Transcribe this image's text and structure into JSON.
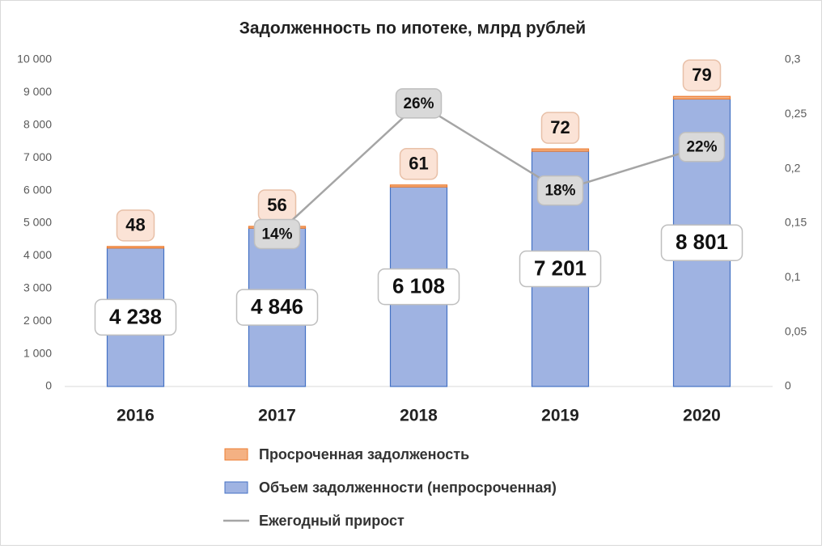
{
  "chart_data": {
    "type": "bar-line",
    "title": "Задолженность по ипотеке, млрд рублей",
    "categories": [
      "2016",
      "2017",
      "2018",
      "2019",
      "2020"
    ],
    "series": [
      {
        "name": "Просроченная задолженость",
        "type": "bar",
        "color": "#f4b183",
        "edge": "#ed7d31",
        "values": [
          48,
          56,
          61,
          72,
          79
        ]
      },
      {
        "name": "Объем задолженности (непросроченная)",
        "type": "bar",
        "color": "#9fb3e2",
        "edge": "#4472c4",
        "values": [
          4238,
          4846,
          6108,
          7201,
          8801
        ],
        "value_labels": [
          "4 238",
          "4 846",
          "6 108",
          "7 201",
          "8 801"
        ]
      },
      {
        "name": "Ежегодный прирост",
        "type": "line",
        "axis": "y2",
        "color": "#a5a5a5",
        "values": [
          null,
          0.14,
          0.26,
          0.18,
          0.22
        ],
        "value_labels": [
          null,
          "14%",
          "26%",
          "18%",
          "22%"
        ]
      }
    ],
    "ylim": [
      0,
      10000
    ],
    "yticks": [
      0,
      {
        "value": 1000,
        "label": "1 000"
      },
      {
        "value": 2000,
        "label": "2 000"
      },
      {
        "value": 3000,
        "label": "3 000"
      },
      {
        "value": 4000,
        "label": "4 000"
      },
      {
        "value": 5000,
        "label": "5 000"
      },
      {
        "value": 6000,
        "label": "6 000"
      },
      {
        "value": 7000,
        "label": "7 000"
      },
      {
        "value": 8000,
        "label": "8 000"
      },
      {
        "value": 9000,
        "label": "9 000"
      },
      {
        "value": 10000,
        "label": "10 000"
      }
    ],
    "y2lim": [
      0,
      0.3
    ],
    "y2ticks": [
      0,
      {
        "value": 0.05,
        "label": "0,05"
      },
      {
        "value": 0.1,
        "label": "0,1"
      },
      {
        "value": 0.15,
        "label": "0,15"
      },
      {
        "value": 0.2,
        "label": "0,2"
      },
      {
        "value": 0.25,
        "label": "0,25"
      },
      {
        "value": 0.3,
        "label": "0,3"
      }
    ],
    "legend": "bottom"
  }
}
